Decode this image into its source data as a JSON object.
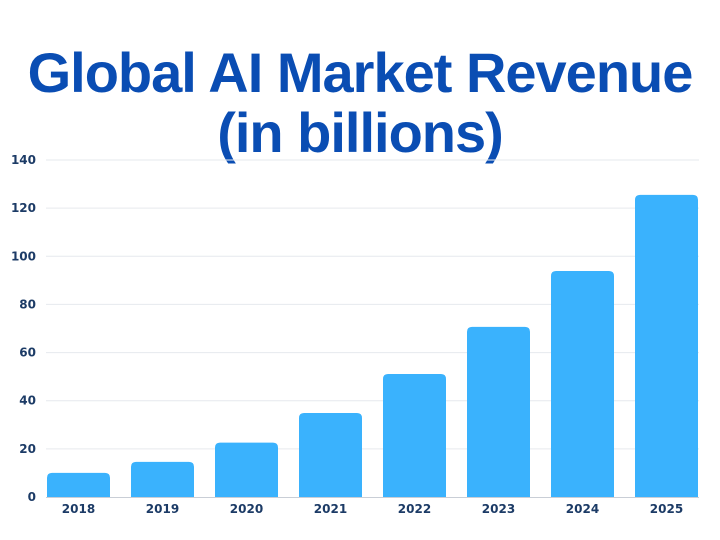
{
  "chart_data": {
    "type": "bar",
    "title": "Global AI Market Revenue",
    "subtitle": "(in billions)",
    "xlabel": "",
    "ylabel": "",
    "categories": [
      "2018",
      "2019",
      "2020",
      "2021",
      "2022",
      "2023",
      "2024",
      "2025"
    ],
    "values": [
      10,
      14.6,
      22.6,
      34.9,
      51.1,
      70.7,
      93.9,
      125.5
    ],
    "ylim": [
      0,
      140
    ],
    "yticks": [
      0,
      20,
      40,
      60,
      80,
      100,
      120,
      140
    ],
    "grid": true,
    "legend": "none",
    "colors": {
      "bar": "#3ab2fd",
      "title": "#0a4db3",
      "tick": "#1c3b66",
      "grid": "#e6e9ee",
      "axis": "#c9ced6"
    }
  }
}
